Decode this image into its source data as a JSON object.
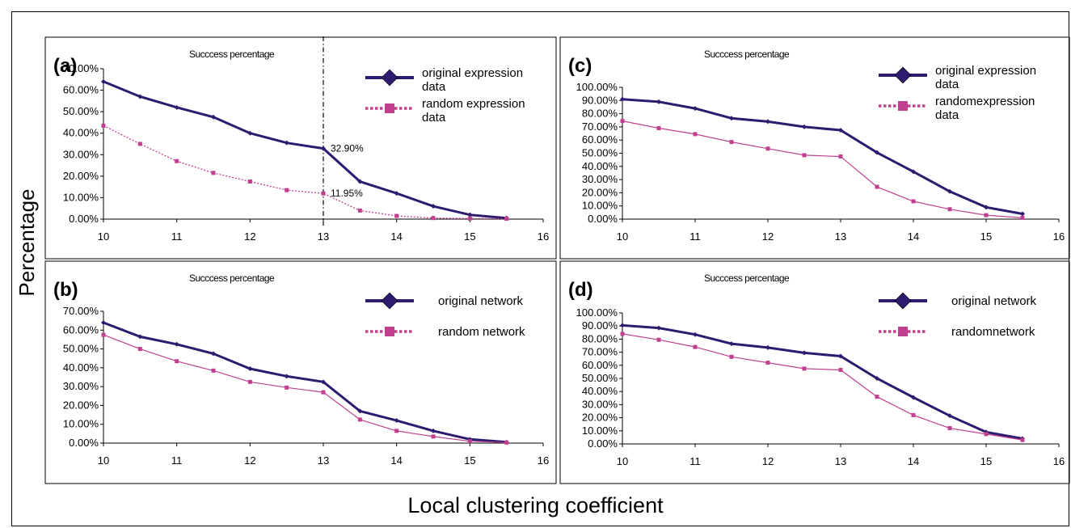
{
  "figure": {
    "ylabel": "Percentage",
    "xlabel": "Local clustering coefficient"
  },
  "chart_data": [
    {
      "panel": "(a)",
      "type": "line",
      "title": "Succcess percentage",
      "x": [
        10,
        10.5,
        11,
        11.5,
        12,
        12.5,
        13,
        13.5,
        14,
        14.5,
        15,
        15.5
      ],
      "xlim": [
        10,
        16
      ],
      "xticks": [
        "10",
        "11",
        "12",
        "13",
        "14",
        "15",
        "16"
      ],
      "ylim": [
        0,
        0.7
      ],
      "yticks": [
        "0.00%",
        "10.00%",
        "20.00%",
        "30.00%",
        "40.00%",
        "50.00%",
        "60.00%",
        "70.00%"
      ],
      "series": [
        {
          "name": "original expression data",
          "legend_lines": [
            "original expression",
            "data"
          ],
          "style": "solid-diamond",
          "color": "#2e1a6e",
          "values": [
            0.64,
            0.57,
            0.52,
            0.475,
            0.4,
            0.355,
            0.329,
            0.175,
            0.12,
            0.06,
            0.02,
            0.005
          ]
        },
        {
          "name": "random expression data",
          "legend_lines": [
            "random expression",
            "data"
          ],
          "style": "dotted-square",
          "color": "#c0408f",
          "values": [
            0.435,
            0.35,
            0.27,
            0.215,
            0.175,
            0.135,
            0.1195,
            0.04,
            0.015,
            0.005,
            0.003,
            0.002
          ]
        }
      ],
      "marker_line": {
        "x": 13
      },
      "annotations": [
        {
          "text": "32.90%",
          "x": 13,
          "y": 0.329
        },
        {
          "text": "11.95%",
          "x": 13,
          "y": 0.1195
        }
      ],
      "grid": false,
      "legend": "top-right"
    },
    {
      "panel": "(b)",
      "type": "line",
      "title": "Succcess percentage",
      "x": [
        10,
        10.5,
        11,
        11.5,
        12,
        12.5,
        13,
        13.5,
        14,
        14.5,
        15,
        15.5
      ],
      "xlim": [
        10,
        16
      ],
      "xticks": [
        "10",
        "11",
        "12",
        "13",
        "14",
        "15",
        "16"
      ],
      "ylim": [
        0,
        0.7
      ],
      "yticks": [
        "0.00%",
        "10.00%",
        "20.00%",
        "30.00%",
        "40.00%",
        "50.00%",
        "60.00%",
        "70.00%"
      ],
      "series": [
        {
          "name": "original network",
          "legend_lines": [
            "original network"
          ],
          "style": "solid-diamond",
          "color": "#2e1a6e",
          "values": [
            0.64,
            0.565,
            0.525,
            0.475,
            0.395,
            0.355,
            0.325,
            0.17,
            0.12,
            0.065,
            0.02,
            0.005
          ]
        },
        {
          "name": "random network",
          "legend_lines": [
            "random network"
          ],
          "style": "thin-square",
          "color": "#c0408f",
          "values": [
            0.575,
            0.5,
            0.435,
            0.385,
            0.325,
            0.295,
            0.27,
            0.125,
            0.065,
            0.035,
            0.01,
            0.003
          ]
        }
      ],
      "grid": false,
      "legend": "top-right"
    },
    {
      "panel": "(c)",
      "type": "line",
      "title": "Succcess percentage",
      "x": [
        10,
        10.5,
        11,
        11.5,
        12,
        12.5,
        13,
        13.5,
        14,
        14.5,
        15,
        15.5
      ],
      "xlim": [
        10,
        16
      ],
      "xticks": [
        "10",
        "11",
        "12",
        "13",
        "14",
        "15",
        "16"
      ],
      "ylim": [
        0,
        1.0
      ],
      "yticks": [
        "0.00%",
        "10.00%",
        "20.00%",
        "30.00%",
        "40.00%",
        "50.00%",
        "60.00%",
        "70.00%",
        "80.00%",
        "90.00%",
        "100.00%"
      ],
      "series": [
        {
          "name": "original expression data",
          "legend_lines": [
            "original expression",
            "data"
          ],
          "style": "solid-diamond",
          "color": "#2e1a6e",
          "values": [
            0.91,
            0.89,
            0.84,
            0.765,
            0.74,
            0.7,
            0.675,
            0.505,
            0.36,
            0.21,
            0.09,
            0.04
          ]
        },
        {
          "name": "randomexpression data",
          "legend_lines": [
            "randomexpression",
            "data"
          ],
          "style": "thin-square",
          "color": "#c0408f",
          "values": [
            0.745,
            0.69,
            0.645,
            0.585,
            0.535,
            0.485,
            0.475,
            0.245,
            0.135,
            0.075,
            0.03,
            0.01
          ]
        }
      ],
      "grid": false,
      "legend": "top-right"
    },
    {
      "panel": "(d)",
      "type": "line",
      "title": "Succcess percentage",
      "x": [
        10,
        10.5,
        11,
        11.5,
        12,
        12.5,
        13,
        13.5,
        14,
        14.5,
        15,
        15.5
      ],
      "xlim": [
        10,
        16
      ],
      "xticks": [
        "10",
        "11",
        "12",
        "13",
        "14",
        "15",
        "16"
      ],
      "ylim": [
        0,
        1.0
      ],
      "yticks": [
        "0.00%",
        "10.00%",
        "20.00%",
        "30.00%",
        "40.00%",
        "50.00%",
        "60.00%",
        "70.00%",
        "80.00%",
        "90.00%",
        "100.00%"
      ],
      "series": [
        {
          "name": "original network",
          "legend_lines": [
            "original network"
          ],
          "style": "solid-diamond",
          "color": "#2e1a6e",
          "values": [
            0.905,
            0.885,
            0.835,
            0.765,
            0.735,
            0.695,
            0.67,
            0.5,
            0.355,
            0.215,
            0.09,
            0.04
          ]
        },
        {
          "name": "randomnetwork",
          "legend_lines": [
            "randomnetwork"
          ],
          "style": "thin-square",
          "color": "#c0408f",
          "values": [
            0.84,
            0.795,
            0.74,
            0.665,
            0.62,
            0.575,
            0.565,
            0.36,
            0.22,
            0.12,
            0.075,
            0.03
          ]
        }
      ],
      "grid": false,
      "legend": "top-right"
    }
  ]
}
